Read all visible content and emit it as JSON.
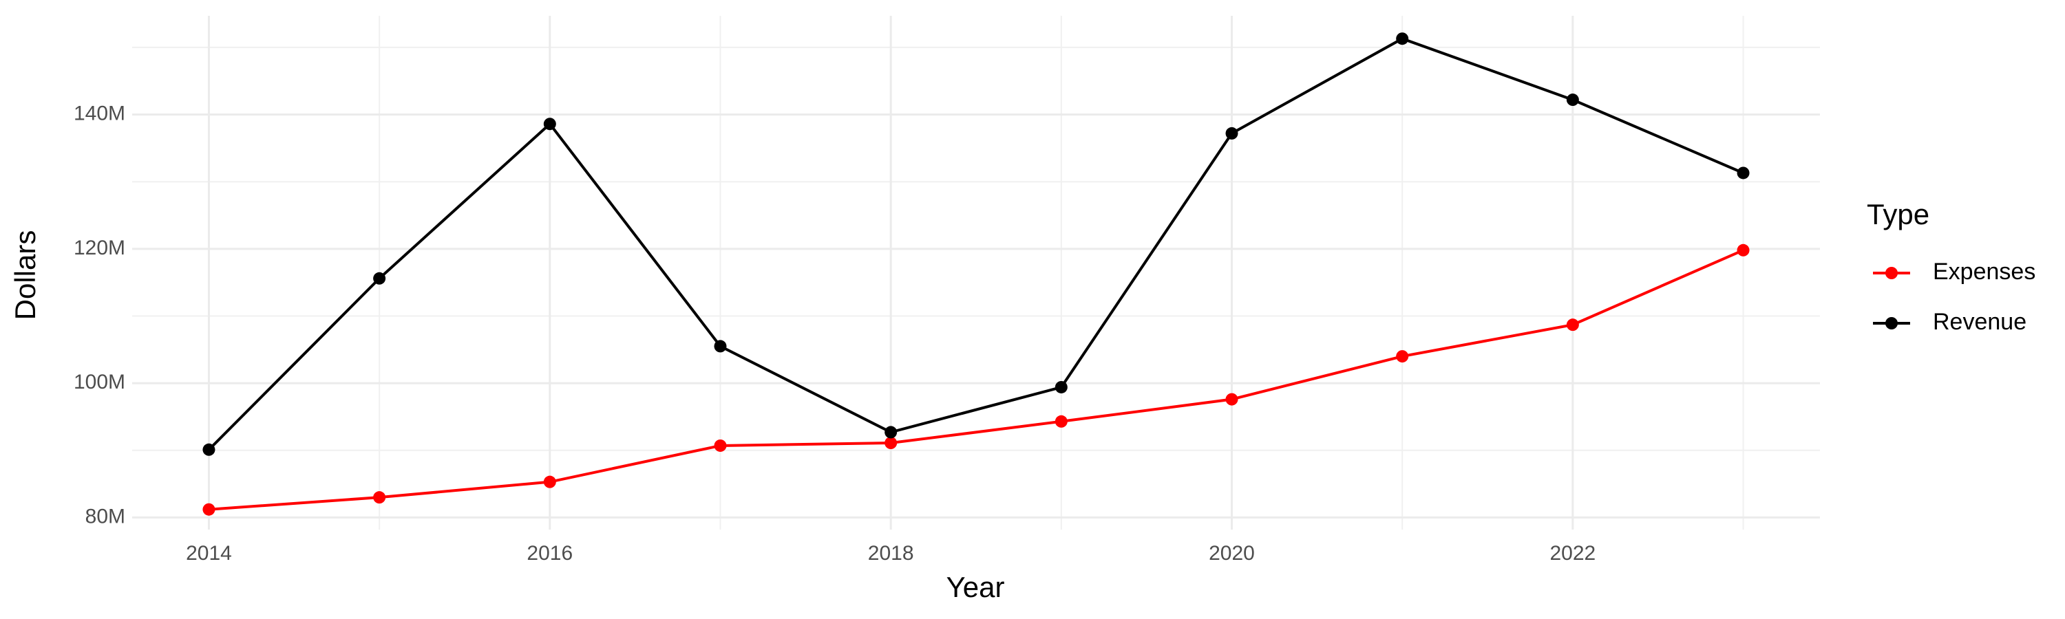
{
  "chart_data": {
    "type": "line",
    "x_label": "Year",
    "y_label": "Dollars",
    "legend_title": "Type",
    "x": [
      2014,
      2015,
      2016,
      2017,
      2018,
      2019,
      2020,
      2021,
      2022,
      2023
    ],
    "series": [
      {
        "name": "Expenses",
        "color": "#ff0000",
        "values": [
          81200000,
          83000000,
          85300000,
          90700000,
          91100000,
          94300000,
          97600000,
          104000000,
          108700000,
          119800000
        ]
      },
      {
        "name": "Revenue",
        "color": "#000000",
        "values": [
          90100000,
          115600000,
          138600000,
          105500000,
          92700000,
          99400000,
          137200000,
          151300000,
          142200000,
          131300000
        ]
      }
    ],
    "xlim": [
      2013.55,
      2023.45
    ],
    "xticks": [
      2014,
      2016,
      2018,
      2020,
      2022
    ],
    "ylim": [
      78200000,
      154700000
    ],
    "yticks": [
      {
        "value": 80000000,
        "label": "80M"
      },
      {
        "value": 100000000,
        "label": "100M"
      },
      {
        "value": 120000000,
        "label": "120M"
      },
      {
        "value": 140000000,
        "label": "140M"
      }
    ],
    "grid": true,
    "legend": "right"
  }
}
